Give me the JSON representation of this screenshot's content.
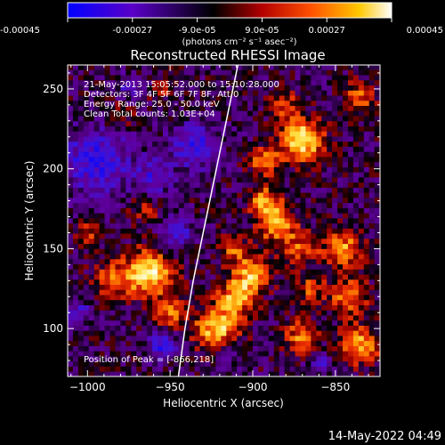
{
  "colorbar": {
    "ticks": [
      "-0.00045",
      "-0.00027",
      "-9.0e-05",
      "9.0e-05",
      "0.00027",
      "0.00045"
    ],
    "tick_values": [
      -0.00045,
      -0.00027,
      -9e-05,
      9e-05,
      0.00027,
      0.00045
    ],
    "range": [
      -0.00045,
      0.00045
    ],
    "unit_label": "(photons cm⁻² s⁻¹ asec⁻²)",
    "colors": [
      "#0000ff",
      "#5a00c8",
      "#000000",
      "#b40000",
      "#ff5000",
      "#ffc800",
      "#ffffff"
    ]
  },
  "chart_data": {
    "type": "heatmap",
    "title": "Reconstructed RHESSI Image",
    "xlabel": "Heliocentric X (arcsec)",
    "ylabel": "Heliocentric Y (arcsec)",
    "xlim": [
      -1012,
      -823
    ],
    "ylim": [
      70,
      265
    ],
    "xticks": [
      -1000,
      -950,
      -900,
      -850
    ],
    "yticks": [
      100,
      150,
      200,
      250
    ],
    "xtick_labels": [
      "−1000",
      "−950",
      "−900",
      "−850"
    ],
    "ytick_labels": [
      "100",
      "150",
      "200",
      "250"
    ],
    "annotations": [
      "21-May-2013 15:05:52.000 to 15:10:28.000",
      "Detectors: 3F 4F 5F 6F 7F 8F, Att 0",
      "Energy Range: 25.0 - 50.0 keV",
      "Clean    Total counts: 1.03E+04"
    ],
    "peak_label": "Position of Peak = [-866,218]",
    "peak": [
      -866,
      218
    ],
    "limb_curve": [
      [
        -945,
        70
      ],
      [
        -941,
        100
      ],
      [
        -936,
        130
      ],
      [
        -930,
        160
      ],
      [
        -924,
        190
      ],
      [
        -918,
        220
      ],
      [
        -912,
        250
      ],
      [
        -909,
        265
      ]
    ],
    "hot_spots": [
      {
        "x": -870,
        "y": 218,
        "amp": 1.0,
        "sigma": 9
      },
      {
        "x": -893,
        "y": 205,
        "amp": 0.7,
        "sigma": 6
      },
      {
        "x": -963,
        "y": 135,
        "amp": 0.95,
        "sigma": 10
      },
      {
        "x": -985,
        "y": 130,
        "amp": 0.5,
        "sigma": 8
      },
      {
        "x": -950,
        "y": 110,
        "amp": 0.55,
        "sigma": 7
      },
      {
        "x": -922,
        "y": 100,
        "amp": 0.85,
        "sigma": 9
      },
      {
        "x": -910,
        "y": 120,
        "amp": 0.75,
        "sigma": 8
      },
      {
        "x": -900,
        "y": 135,
        "amp": 0.7,
        "sigma": 8
      },
      {
        "x": -885,
        "y": 165,
        "amp": 0.75,
        "sigma": 8
      },
      {
        "x": -893,
        "y": 180,
        "amp": 0.6,
        "sigma": 7
      },
      {
        "x": -870,
        "y": 150,
        "amp": 0.5,
        "sigma": 7
      },
      {
        "x": -845,
        "y": 150,
        "amp": 0.65,
        "sigma": 8
      },
      {
        "x": -842,
        "y": 120,
        "amp": 0.6,
        "sigma": 8
      },
      {
        "x": -835,
        "y": 90,
        "amp": 0.75,
        "sigma": 8
      },
      {
        "x": -870,
        "y": 95,
        "amp": 0.65,
        "sigma": 7
      },
      {
        "x": -865,
        "y": 125,
        "amp": 0.45,
        "sigma": 6
      },
      {
        "x": -912,
        "y": 150,
        "amp": 0.45,
        "sigma": 6
      },
      {
        "x": -1000,
        "y": 160,
        "amp": 0.4,
        "sigma": 6
      },
      {
        "x": -965,
        "y": 175,
        "amp": 0.35,
        "sigma": 6
      },
      {
        "x": -980,
        "y": 235,
        "amp": 0.35,
        "sigma": 6
      },
      {
        "x": -955,
        "y": 250,
        "amp": 0.3,
        "sigma": 5
      },
      {
        "x": -835,
        "y": 245,
        "amp": 0.5,
        "sigma": 7
      },
      {
        "x": -880,
        "y": 240,
        "amp": 0.45,
        "sigma": 6
      }
    ],
    "cold_spots": [
      {
        "x": -995,
        "y": 205,
        "amp": -0.6,
        "sigma": 14
      },
      {
        "x": -935,
        "y": 215,
        "amp": -0.55,
        "sigma": 10
      },
      {
        "x": -955,
        "y": 90,
        "amp": -0.6,
        "sigma": 6
      },
      {
        "x": -960,
        "y": 195,
        "amp": -0.45,
        "sigma": 8
      },
      {
        "x": -945,
        "y": 160,
        "amp": -0.4,
        "sigma": 7
      },
      {
        "x": -975,
        "y": 250,
        "amp": -0.3,
        "sigma": 6
      },
      {
        "x": -1005,
        "y": 110,
        "amp": -0.35,
        "sigma": 6
      },
      {
        "x": -860,
        "y": 80,
        "amp": -0.35,
        "sigma": 5
      },
      {
        "x": -915,
        "y": 85,
        "amp": -0.4,
        "sigma": 5
      }
    ]
  },
  "timestamp": "14-May-2022 04:49"
}
